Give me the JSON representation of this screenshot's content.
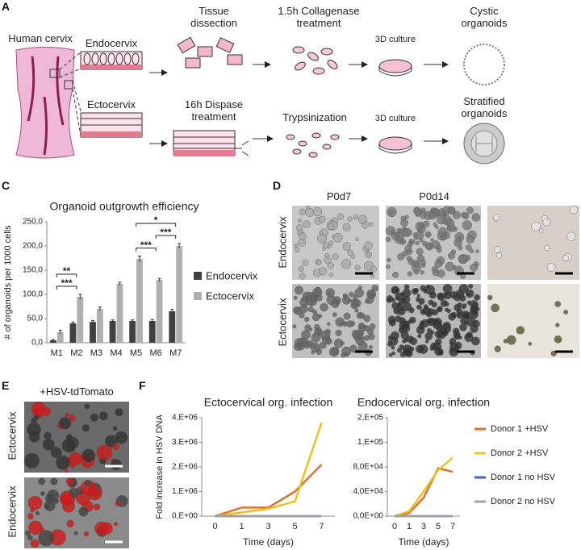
{
  "panel_labels": [
    "A",
    "C",
    "D",
    "E",
    "F"
  ],
  "diagram": {
    "source": "Human cervix",
    "regions": [
      "Endocervix",
      "Ectocervix"
    ],
    "endo_steps": [
      "Tissue dissection",
      "1.5h Collagenase treatment",
      "3D culture",
      "Cystic organoids"
    ],
    "ecto_steps": [
      "16h Dispase treatment",
      "Trypsinization",
      "3D culture",
      "Stratified organoids"
    ]
  },
  "micrographs": {
    "columns": [
      "P0d7",
      "P0d14"
    ],
    "rows": [
      "Endocervix",
      "Ectocervix"
    ]
  },
  "infection_images": {
    "title": "+HSV-tdTomato",
    "rows": [
      "Ectocervix",
      "Endocervix"
    ]
  },
  "chart_data": [
    {
      "type": "bar",
      "title": "Organoid outgrowth efficiency",
      "y_label": "# of organoids per 1000 cells",
      "categories": [
        "M1",
        "M2",
        "M3",
        "M4",
        "M5",
        "M6",
        "M7"
      ],
      "series": [
        {
          "name": "Endocervix",
          "color": "#404040",
          "values": [
            5,
            40,
            43,
            45,
            45,
            45,
            65
          ],
          "errors": [
            2,
            3,
            3,
            2,
            2,
            3,
            4
          ]
        },
        {
          "name": "Ectocervix",
          "color": "#b0b0b0",
          "values": [
            22,
            95,
            70,
            122,
            173,
            130,
            200
          ],
          "errors": [
            4,
            5,
            4,
            3,
            6,
            3,
            5
          ]
        }
      ],
      "ylim": [
        0,
        250
      ],
      "yticks": [
        {
          "value": 0,
          "label": "0,0"
        },
        {
          "value": 50,
          "label": "50,0"
        },
        {
          "value": 100,
          "label": "100,0"
        },
        {
          "value": 150,
          "label": "150,0"
        },
        {
          "value": 200,
          "label": "200,0"
        },
        {
          "value": 250,
          "label": "250,0"
        }
      ],
      "significance": [
        {
          "label": "***",
          "from": 0,
          "to": 1
        },
        {
          "label": "**",
          "from": 0,
          "to": 1
        },
        {
          "label": "***",
          "from": 4,
          "to": 5
        },
        {
          "label": "***",
          "from": 5,
          "to": 6
        },
        {
          "label": "*",
          "from": 4,
          "to": 6
        }
      ]
    },
    {
      "type": "line",
      "title": "Ectocervical org. infection",
      "y_label": "Fold increase in HSV DNA",
      "x_label": "Time (days)",
      "categories": [
        "0",
        "1",
        "3",
        "5",
        "7"
      ],
      "series": [
        {
          "color": "#e07030",
          "values": [
            0,
            350000,
            350000,
            1000000,
            2100000
          ]
        },
        {
          "color": "#f0c020",
          "values": [
            0,
            150000,
            300000,
            600000,
            3800000
          ]
        },
        {
          "color": "#4060c0",
          "values": [
            0,
            0,
            0,
            0,
            0
          ]
        },
        {
          "color": "#a0a0a0",
          "values": [
            0,
            0,
            0,
            0,
            0
          ]
        }
      ],
      "ylim": [
        0,
        4000000
      ],
      "yticks": [
        {
          "value": 0,
          "label": "0,E+00"
        },
        {
          "value": 1000000,
          "label": "1,E+06"
        },
        {
          "value": 2000000,
          "label": "2,E+06"
        },
        {
          "value": 3000000,
          "label": "3,E+06"
        },
        {
          "value": 4000000,
          "label": "4,E+06"
        }
      ]
    },
    {
      "type": "line",
      "title": "Endocervical org. infection",
      "x_label": "Time (days)",
      "categories": [
        "0",
        "1",
        "3",
        "5",
        "7"
      ],
      "series": [
        {
          "name": "Donor 1 +HSV",
          "color": "#e07030",
          "values": [
            0,
            5000,
            30000,
            78000,
            72000
          ]
        },
        {
          "name": "Donor 2 +HSV",
          "color": "#f0c020",
          "values": [
            0,
            8000,
            40000,
            75000,
            95000
          ]
        },
        {
          "name": "Donor 1 no HSV",
          "color": "#4060c0",
          "values": [
            0,
            0,
            0,
            0,
            0
          ]
        },
        {
          "name": "Donor 2 no HSV",
          "color": "#a0a0a0",
          "values": [
            0,
            0,
            0,
            0,
            0
          ]
        }
      ],
      "ylim": [
        0,
        160000
      ],
      "yticks": [
        {
          "value": 0,
          "label": "0,0E+00"
        },
        {
          "value": 40000,
          "label": "4,0E+04"
        },
        {
          "value": 80000,
          "label": "8,0E+04"
        },
        {
          "value": 120000,
          "label": "1,E+05"
        },
        {
          "value": 160000,
          "label": "2,E+05"
        }
      ]
    }
  ]
}
